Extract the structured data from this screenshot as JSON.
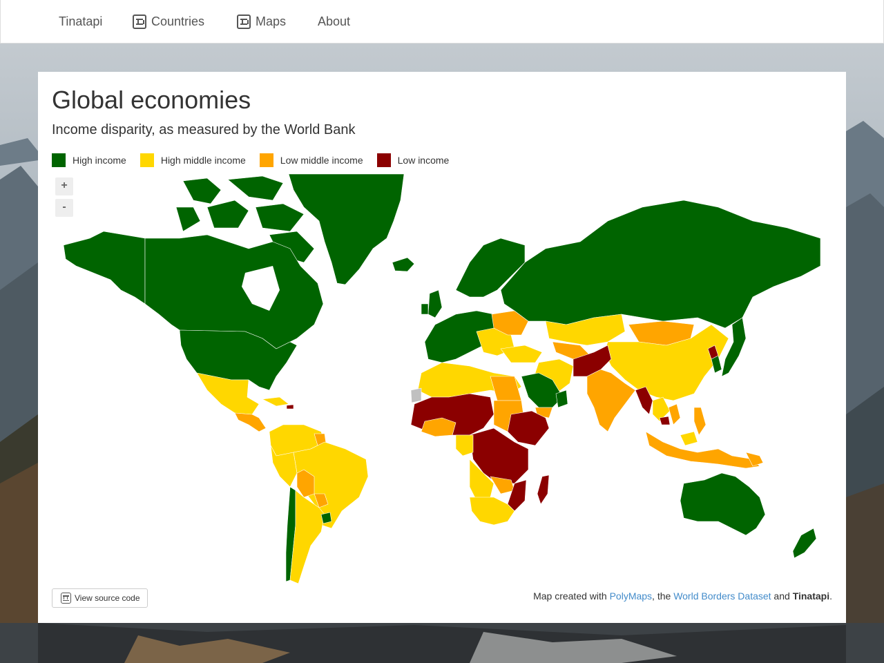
{
  "navbar": {
    "brand": "Tinatapi",
    "items": [
      {
        "label": "Countries",
        "icon": "tinatapi-logo-icon"
      },
      {
        "label": "Maps",
        "icon": "tinatapi-logo-icon"
      },
      {
        "label": "About"
      }
    ]
  },
  "page": {
    "title": "Global economies",
    "subtitle": "Income disparity, as measured by the World Bank"
  },
  "legend": [
    {
      "label": "High income",
      "color": "#006400"
    },
    {
      "label": "High middle income",
      "color": "#ffd700"
    },
    {
      "label": "Low middle income",
      "color": "#ffa500"
    },
    {
      "label": "Low income",
      "color": "#8b0000"
    }
  ],
  "colors": {
    "high": "#006400",
    "upper_middle": "#ffd700",
    "lower_middle": "#ffa500",
    "low": "#8b0000",
    "no_data": "#c0c0c0",
    "link": "#428bca"
  },
  "zoom": {
    "in_label": "+",
    "out_label": "-"
  },
  "source_button": {
    "label": "View source code",
    "icon": "tinatapi-logo-icon"
  },
  "credits": {
    "prefix": "Map created with ",
    "link1": "PolyMaps",
    "middle": ", the ",
    "link2": "World Borders Dataset",
    "and": " and ",
    "brand": "Tinatapi",
    "suffix": "."
  }
}
